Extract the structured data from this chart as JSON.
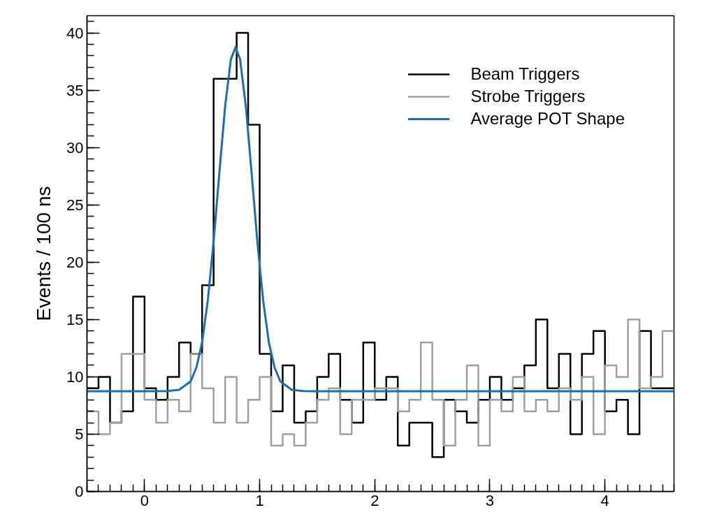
{
  "chart_data": {
    "type": "histogram",
    "ylabel": "Events / 100 ns",
    "bins": [
      -0.5,
      -0.4,
      -0.3,
      -0.2,
      -0.1,
      0.0,
      0.1,
      0.2,
      0.3,
      0.4,
      0.5,
      0.6,
      0.7,
      0.8,
      0.9,
      1.0,
      1.1,
      1.2,
      1.3,
      1.4,
      1.5,
      1.6,
      1.7,
      1.8,
      1.9,
      2.0,
      2.1,
      2.2,
      2.3,
      2.4,
      2.5,
      2.6,
      2.7,
      2.8,
      2.9,
      3.0,
      3.1,
      3.2,
      3.3,
      3.4,
      3.5,
      3.6,
      3.7,
      3.8,
      3.9,
      4.0,
      4.1,
      4.2,
      4.3,
      4.4,
      4.5,
      4.6
    ],
    "series": [
      {
        "name": "Beam Triggers",
        "color": "#000000",
        "values": [
          9,
          10,
          6,
          7,
          17,
          9,
          8,
          10,
          13,
          12,
          18,
          36,
          36,
          40,
          32,
          12,
          7,
          11,
          6,
          7,
          10,
          12,
          8,
          6,
          13,
          8,
          10,
          4,
          6,
          6,
          3,
          8,
          7,
          6,
          8,
          10,
          8,
          9,
          11,
          15,
          9,
          12,
          5,
          12,
          14,
          7,
          8,
          5,
          14,
          9,
          9
        ]
      },
      {
        "name": "Strobe Triggers",
        "color": "#a0a0a0",
        "values": [
          7,
          5,
          6,
          12,
          12,
          8,
          6,
          8,
          7,
          12,
          9,
          6,
          10,
          6,
          8,
          10,
          4,
          5,
          4,
          6,
          8,
          9,
          5,
          8,
          8,
          9,
          9,
          7,
          8,
          13,
          8,
          4,
          8,
          11,
          4,
          8,
          7,
          10,
          7,
          8,
          7,
          9,
          8,
          10,
          5,
          11,
          10,
          15,
          9,
          10,
          14
        ]
      },
      {
        "name": "Average POT Shape",
        "type": "line",
        "color": "#1a6fb0",
        "x": [
          -0.5,
          0.0,
          0.2,
          0.3,
          0.4,
          0.45,
          0.5,
          0.55,
          0.6,
          0.65,
          0.7,
          0.75,
          0.79,
          0.83,
          0.88,
          0.93,
          0.98,
          1.03,
          1.08,
          1.13,
          1.18,
          1.28,
          1.38,
          1.5,
          4.6
        ],
        "values": [
          8.75,
          8.75,
          8.76,
          8.87,
          9.6,
          10.8,
          13.0,
          16.7,
          21.8,
          27.8,
          33.6,
          37.7,
          38.75,
          37.7,
          33.6,
          27.8,
          21.8,
          16.7,
          13.0,
          10.8,
          9.6,
          8.87,
          8.76,
          8.75,
          8.75
        ]
      }
    ],
    "xlim": [
      -0.5,
      4.6
    ],
    "ylim": [
      0,
      41.5
    ],
    "xticks": [
      0,
      1,
      2,
      3,
      4
    ],
    "yticks": [
      0,
      5,
      10,
      15,
      20,
      25,
      30,
      35,
      40
    ],
    "grid": false,
    "legend": "top right"
  }
}
